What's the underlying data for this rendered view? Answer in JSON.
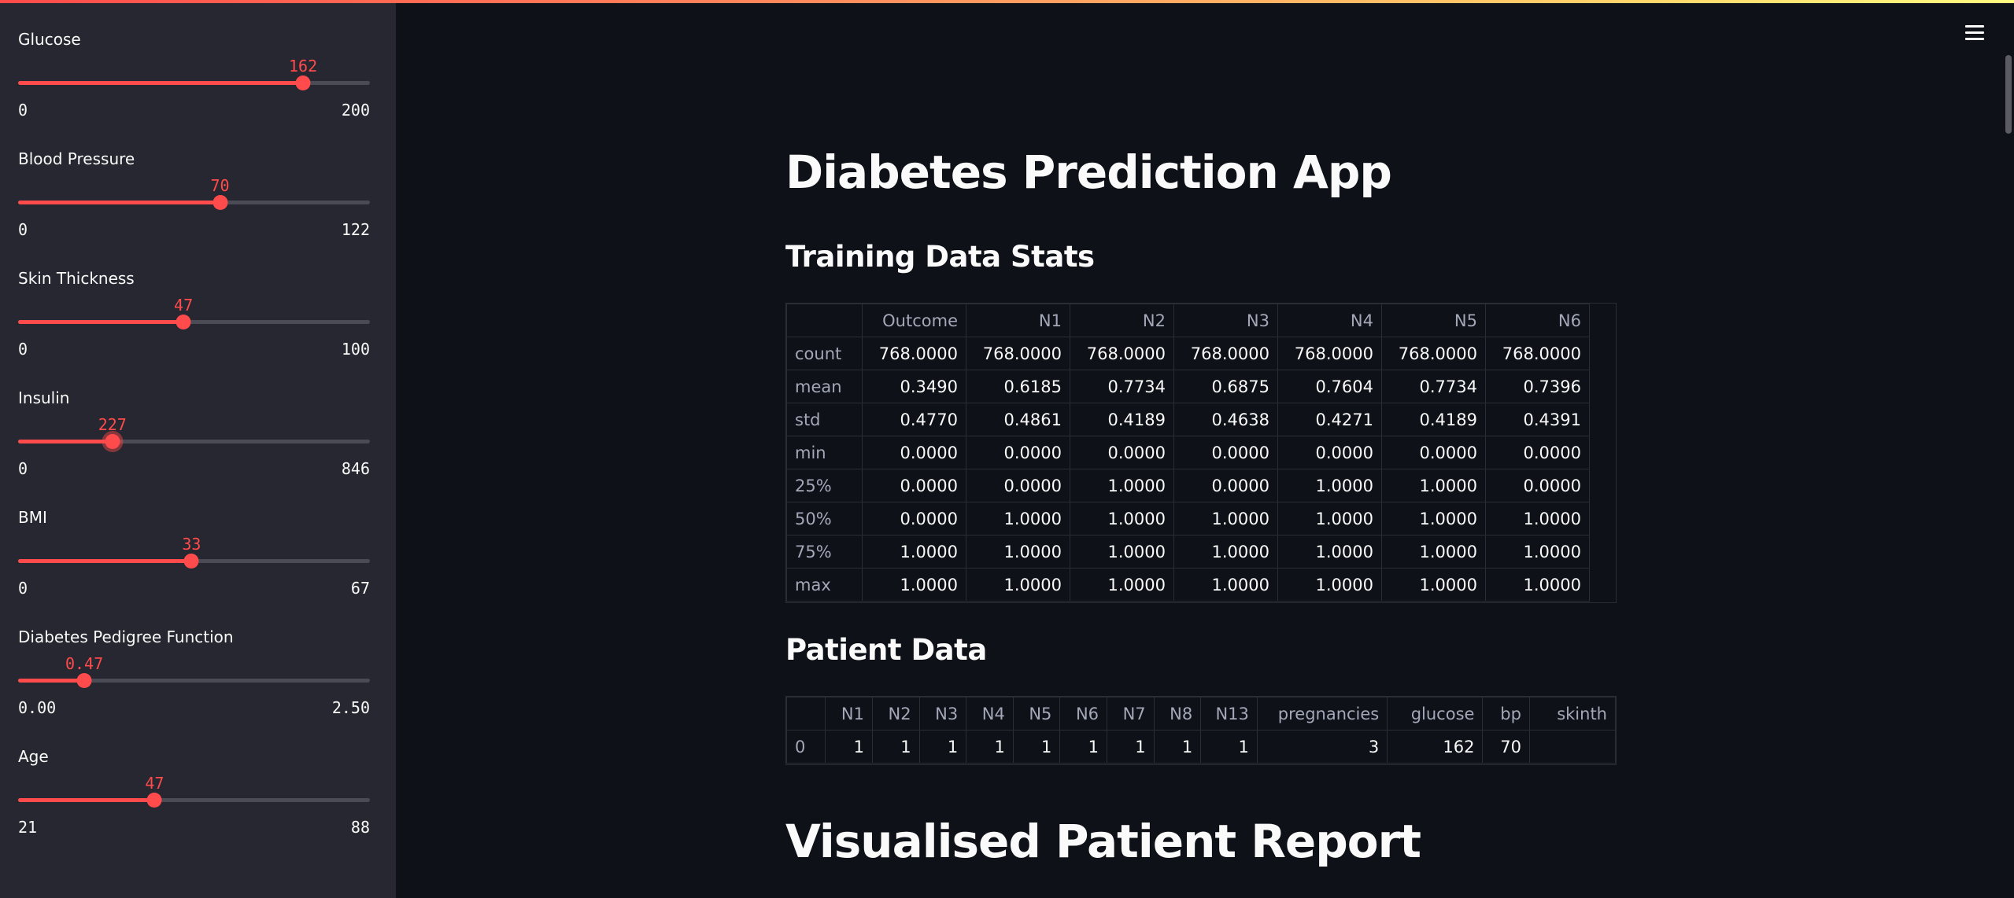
{
  "sidebar": {
    "sliders": [
      {
        "label": "Glucose",
        "value": "162",
        "min": "0",
        "max": "200",
        "fraction": 0.81
      },
      {
        "label": "Blood Pressure",
        "value": "70",
        "min": "0",
        "max": "122",
        "fraction": 0.574
      },
      {
        "label": "Skin Thickness",
        "value": "47",
        "min": "0",
        "max": "100",
        "fraction": 0.47
      },
      {
        "label": "Insulin",
        "value": "227",
        "min": "0",
        "max": "846",
        "fraction": 0.268
      },
      {
        "label": "BMI",
        "value": "33",
        "min": "0",
        "max": "67",
        "fraction": 0.493
      },
      {
        "label": "Diabetes Pedigree Function",
        "value": "0.47",
        "min": "0.00",
        "max": "2.50",
        "fraction": 0.188
      },
      {
        "label": "Age",
        "value": "47",
        "min": "21",
        "max": "88",
        "fraction": 0.388
      }
    ]
  },
  "main": {
    "title": "Diabetes Prediction App",
    "training_heading": "Training Data Stats",
    "patient_heading": "Patient Data",
    "report_heading": "Visualised Patient Report",
    "training_table": {
      "columns": [
        "",
        "Outcome",
        "N1",
        "N2",
        "N3",
        "N4",
        "N5",
        "N6"
      ],
      "rows": [
        [
          "count",
          "768.0000",
          "768.0000",
          "768.0000",
          "768.0000",
          "768.0000",
          "768.0000",
          "768.0000"
        ],
        [
          "mean",
          "0.3490",
          "0.6185",
          "0.7734",
          "0.6875",
          "0.7604",
          "0.7734",
          "0.7396"
        ],
        [
          "std",
          "0.4770",
          "0.4861",
          "0.4189",
          "0.4638",
          "0.4271",
          "0.4189",
          "0.4391"
        ],
        [
          "min",
          "0.0000",
          "0.0000",
          "0.0000",
          "0.0000",
          "0.0000",
          "0.0000",
          "0.0000"
        ],
        [
          "25%",
          "0.0000",
          "0.0000",
          "1.0000",
          "0.0000",
          "1.0000",
          "1.0000",
          "0.0000"
        ],
        [
          "50%",
          "0.0000",
          "1.0000",
          "1.0000",
          "1.0000",
          "1.0000",
          "1.0000",
          "1.0000"
        ],
        [
          "75%",
          "1.0000",
          "1.0000",
          "1.0000",
          "1.0000",
          "1.0000",
          "1.0000",
          "1.0000"
        ],
        [
          "max",
          "1.0000",
          "1.0000",
          "1.0000",
          "1.0000",
          "1.0000",
          "1.0000",
          "1.0000"
        ]
      ]
    },
    "patient_table": {
      "columns": [
        "",
        "N1",
        "N2",
        "N3",
        "N4",
        "N5",
        "N6",
        "N7",
        "N8",
        "N13",
        "pregnancies",
        "glucose",
        "bp",
        "skinth"
      ],
      "rows": [
        [
          "0",
          "1",
          "1",
          "1",
          "1",
          "1",
          "1",
          "1",
          "1",
          "1",
          "3",
          "162",
          "70",
          ""
        ]
      ]
    }
  }
}
